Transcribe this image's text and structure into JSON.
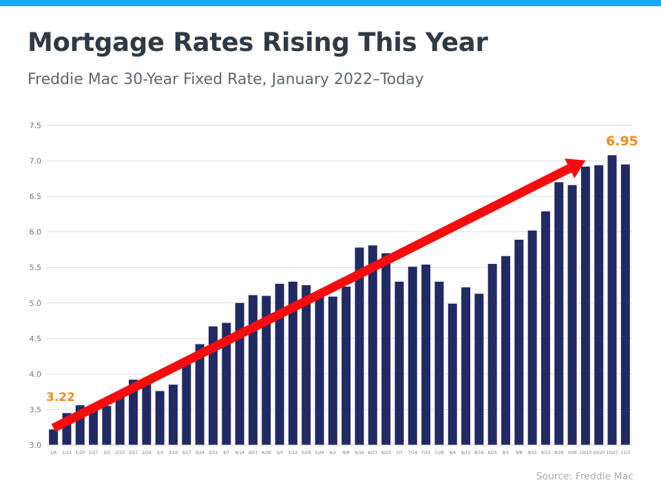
{
  "header": {
    "title": "Mortgage Rates Rising This Year",
    "subtitle": "Freddie Mac 30-Year Fixed Rate, January 2022–Today"
  },
  "footer": {
    "source": "Source: Freddie Mac"
  },
  "colors": {
    "accent_bar": "#19aaf0",
    "bar": "#222a63",
    "trend_arrow": "#f50d0d",
    "callout": "#f28a19",
    "grid": "#dedede"
  },
  "chart_data": {
    "type": "bar",
    "title": "Mortgage Rates Rising This Year",
    "subtitle": "Freddie Mac 30-Year Fixed Rate, January 2022–Today",
    "xlabel": "",
    "ylabel": "",
    "ylim": [
      3.0,
      7.5
    ],
    "yticks": [
      "3.0",
      "3.5",
      "4.0",
      "4.5",
      "5.0",
      "5.5",
      "6.0",
      "6.5",
      "7.0",
      "7.5"
    ],
    "grid": true,
    "categories": [
      "1/6",
      "1/13",
      "1/20",
      "1/27",
      "2/3",
      "2/10",
      "2/17",
      "2/24",
      "3/3",
      "3/10",
      "3/17",
      "3/24",
      "3/31",
      "4/7",
      "4/14",
      "4/21",
      "4/28",
      "5/5",
      "5/12",
      "5/19",
      "5/26",
      "6/2",
      "6/9",
      "6/16",
      "6/23",
      "6/23",
      "7/7",
      "7/14",
      "7/21",
      "7/28",
      "8/4",
      "8/11",
      "8/18",
      "8/25",
      "9/1",
      "9/8",
      "9/15",
      "9/22",
      "9/29",
      "10/6",
      "10/13",
      "10/20",
      "10/27",
      "11/3"
    ],
    "values": [
      3.22,
      3.45,
      3.56,
      3.55,
      3.55,
      3.69,
      3.92,
      3.89,
      3.76,
      3.85,
      4.16,
      4.42,
      4.67,
      4.72,
      5.0,
      5.11,
      5.1,
      5.27,
      5.3,
      5.25,
      5.1,
      5.09,
      5.23,
      5.78,
      5.81,
      5.7,
      5.3,
      5.51,
      5.54,
      5.3,
      4.99,
      5.22,
      5.13,
      5.55,
      5.66,
      5.89,
      6.02,
      6.29,
      6.7,
      6.66,
      6.92,
      6.94,
      7.08,
      6.95
    ],
    "trend": {
      "from_label": "3.22",
      "to_label": "6.95",
      "from_value": 3.22,
      "to_value": 6.95
    }
  }
}
